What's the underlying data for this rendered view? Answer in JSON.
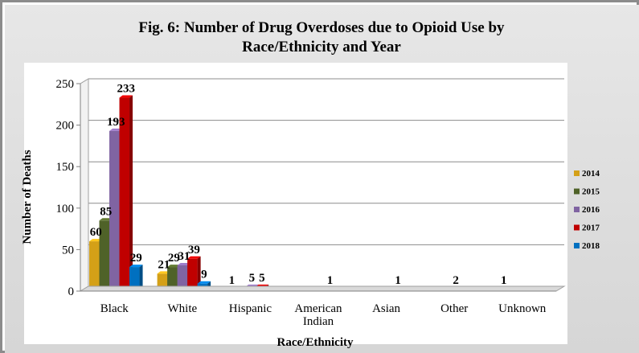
{
  "chart_data": {
    "type": "bar",
    "title_lines": [
      "Fig. 6: Number of Drug Overdoses due to Opioid Use by",
      "Race/Ethnicity and Year"
    ],
    "xlabel": "Race/Ethnicity",
    "ylabel": "Number of Deaths",
    "ylim": [
      0,
      250
    ],
    "yticks": [
      0,
      50,
      100,
      150,
      200,
      250
    ],
    "grid": true,
    "legend_position": "right",
    "categories": [
      [
        "Black"
      ],
      [
        "White"
      ],
      [
        "Hispanic"
      ],
      [
        "American",
        "Indian"
      ],
      [
        "Asian"
      ],
      [
        "Other"
      ],
      [
        "Unknown"
      ]
    ],
    "series": [
      {
        "name": "2014",
        "color": "#d4a017",
        "values": [
          60,
          21,
          1,
          0,
          0,
          0,
          1
        ],
        "labels": [
          "60",
          "21",
          "1",
          "",
          "",
          "",
          "1"
        ]
      },
      {
        "name": "2015",
        "color": "#4f6228",
        "values": [
          85,
          29,
          0,
          0,
          0,
          0,
          0
        ],
        "labels": [
          "85",
          "29",
          "",
          "",
          "",
          "",
          ""
        ]
      },
      {
        "name": "2016",
        "color": "#8064a2",
        "values": [
          193,
          31,
          5,
          0,
          0,
          2,
          0
        ],
        "labels": [
          "193",
          "31",
          "5",
          "",
          "",
          "2",
          ""
        ]
      },
      {
        "name": "2017",
        "color": "#c00000",
        "values": [
          233,
          39,
          5,
          1,
          1,
          0,
          0
        ],
        "labels": [
          "233",
          "39",
          "5",
          "1",
          "1",
          "",
          ""
        ]
      },
      {
        "name": "2018",
        "color": "#0070c0",
        "values": [
          29,
          9,
          0,
          0,
          0,
          0,
          0
        ],
        "labels": [
          "29",
          "9",
          "",
          "",
          "",
          "",
          ""
        ]
      }
    ]
  }
}
